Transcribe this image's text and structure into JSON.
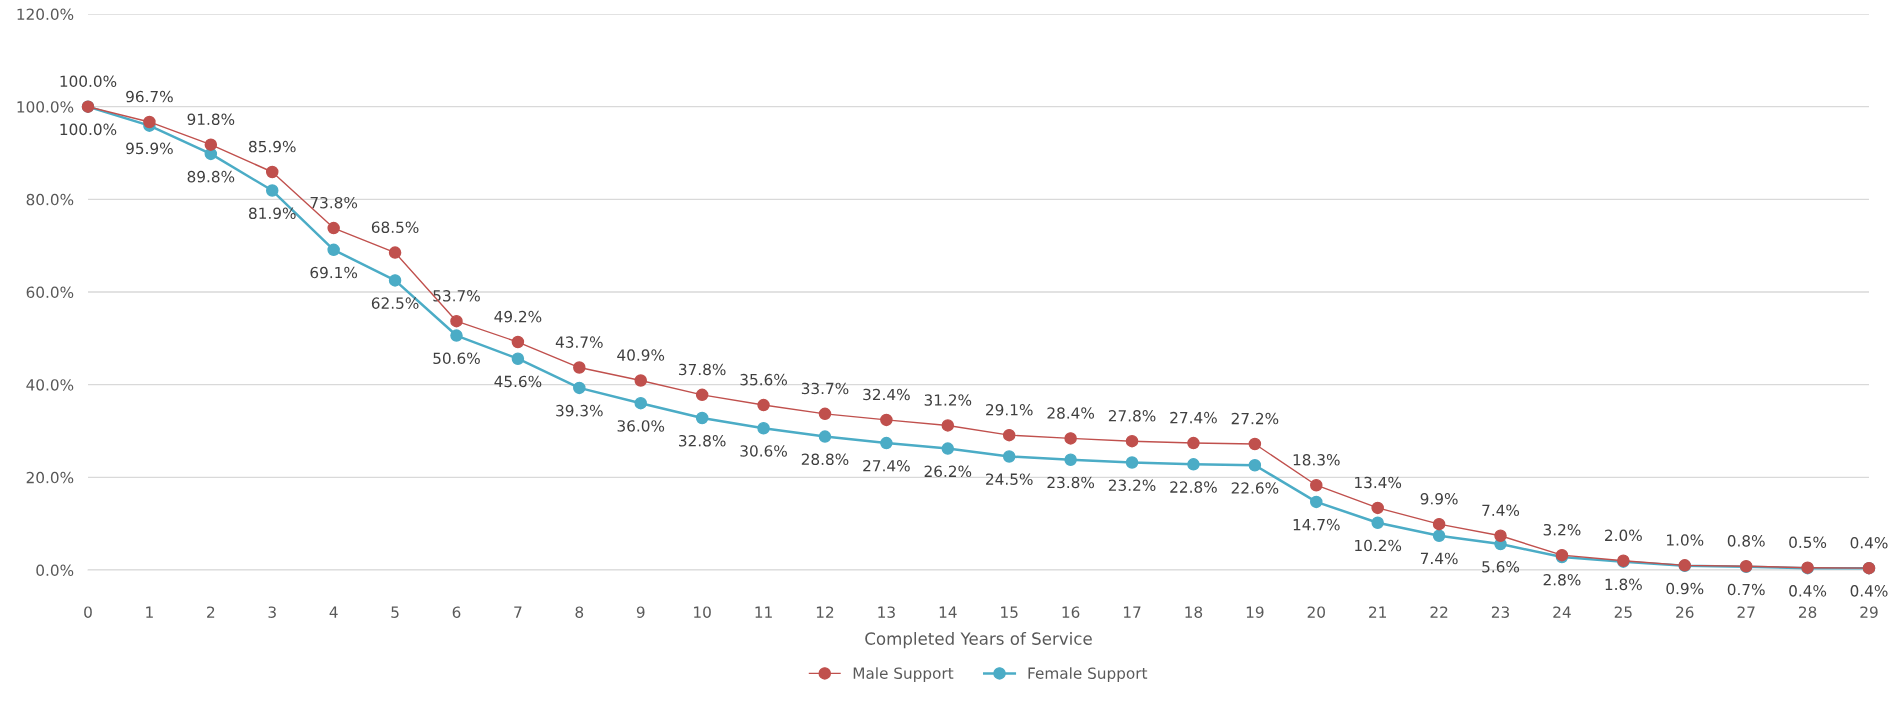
{
  "chart_data": {
    "type": "line",
    "xlabel": "Completed Years of Service",
    "categories": [
      "0",
      "1",
      "2",
      "3",
      "4",
      "5",
      "6",
      "7",
      "8",
      "9",
      "10",
      "11",
      "12",
      "13",
      "14",
      "15",
      "16",
      "17",
      "18",
      "19",
      "20",
      "21",
      "22",
      "23",
      "24",
      "25",
      "26",
      "27",
      "28",
      "29"
    ],
    "series": [
      {
        "name": "Male Support",
        "color": "#c0504d",
        "values": [
          100.0,
          96.7,
          91.8,
          85.9,
          73.8,
          68.5,
          53.7,
          49.2,
          43.7,
          40.9,
          37.8,
          35.6,
          33.7,
          32.4,
          31.2,
          29.1,
          28.4,
          27.8,
          27.4,
          27.2,
          18.3,
          13.4,
          9.9,
          7.4,
          3.2,
          2.0,
          1.0,
          0.8,
          0.5,
          0.4
        ],
        "value_labels": [
          "100.0%",
          "96.7%",
          "91.8%",
          "85.9%",
          "73.8%",
          "68.5%",
          "53.7%",
          "49.2%",
          "43.7%",
          "40.9%",
          "37.8%",
          "35.6%",
          "33.7%",
          "32.4%",
          "31.2%",
          "29.1%",
          "28.4%",
          "27.8%",
          "27.4%",
          "27.2%",
          "18.3%",
          "13.4%",
          "9.9%",
          "7.4%",
          "3.2%",
          "2.0%",
          "1.0%",
          "0.8%",
          "0.5%",
          "0.4%"
        ]
      },
      {
        "name": "Female Support",
        "color": "#4bacc6",
        "values": [
          100.0,
          95.9,
          89.8,
          81.9,
          69.1,
          62.5,
          50.6,
          45.6,
          39.3,
          36.0,
          32.8,
          30.6,
          28.8,
          27.4,
          26.2,
          24.5,
          23.8,
          23.2,
          22.8,
          22.6,
          14.7,
          10.2,
          7.4,
          5.6,
          2.8,
          1.8,
          0.9,
          0.7,
          0.4,
          0.4
        ],
        "value_labels": [
          "100.0%",
          "95.9%",
          "89.8%",
          "81.9%",
          "69.1%",
          "62.5%",
          "50.6%",
          "45.6%",
          "39.3%",
          "36.0%",
          "32.8%",
          "30.6%",
          "28.8%",
          "27.4%",
          "26.2%",
          "24.5%",
          "23.8%",
          "23.2%",
          "22.8%",
          "22.6%",
          "14.7%",
          "10.2%",
          "7.4%",
          "5.6%",
          "2.8%",
          "1.8%",
          "0.9%",
          "0.7%",
          "0.4%",
          "0.4%"
        ]
      }
    ],
    "ylim": [
      0,
      120
    ],
    "yticks": [
      {
        "value": 0,
        "label": "0.0%"
      },
      {
        "value": 20,
        "label": "20.0%"
      },
      {
        "value": 40,
        "label": "40.0%"
      },
      {
        "value": 60,
        "label": "60.0%"
      },
      {
        "value": 80,
        "label": "80.0%"
      },
      {
        "value": 100,
        "label": "100.0%"
      },
      {
        "value": 120,
        "label": "120.0%"
      }
    ],
    "grid": "y",
    "legend": "bottom",
    "marker": "circle",
    "line_style": "solid"
  }
}
